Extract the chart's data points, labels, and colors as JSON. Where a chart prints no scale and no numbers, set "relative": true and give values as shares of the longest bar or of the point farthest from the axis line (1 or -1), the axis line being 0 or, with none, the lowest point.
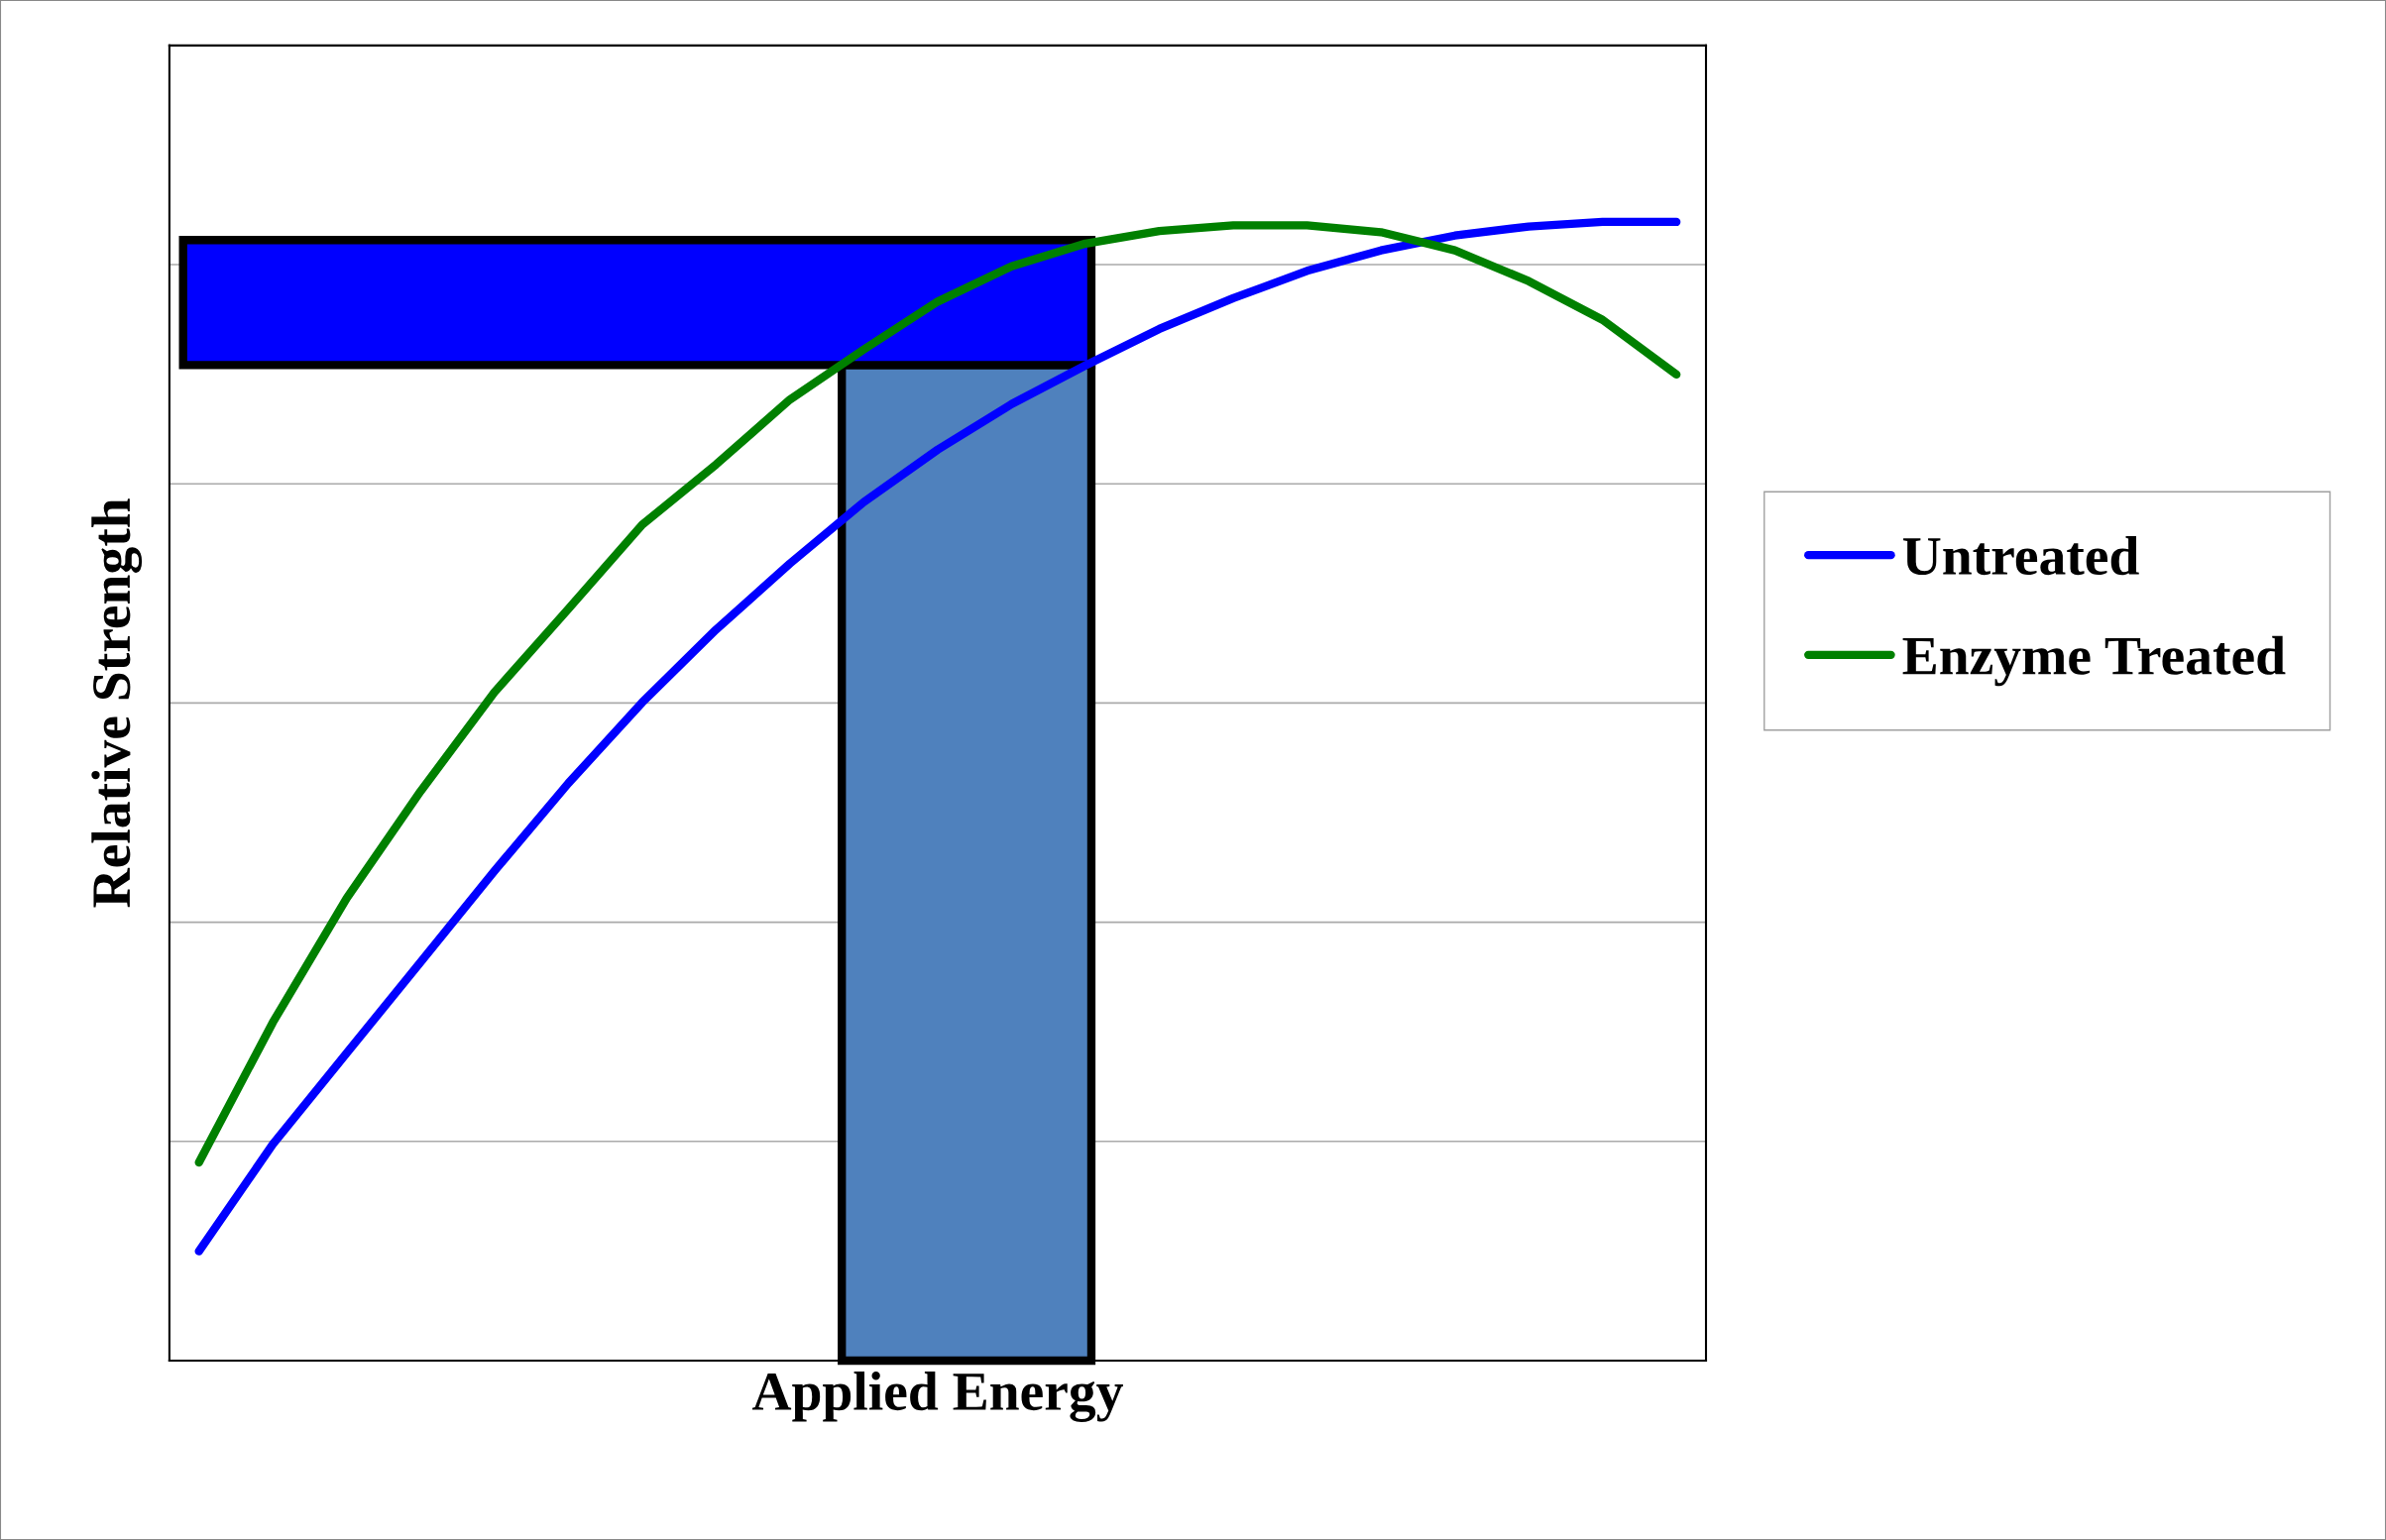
{
  "chart_data": {
    "type": "line",
    "relative": true,
    "xlabel": "Applied Energy",
    "ylabel": "Relative Strength",
    "categories": [
      null,
      null,
      null,
      null,
      null,
      null,
      null,
      null,
      null,
      null,
      null,
      null,
      null,
      null,
      null,
      null,
      null,
      null,
      null,
      null,
      null
    ],
    "series": [
      {
        "name": "Untreated",
        "color": "#0000ff",
        "values": [
          0.096,
          0.19,
          0.27,
          0.35,
          0.43,
          0.507,
          0.578,
          0.642,
          0.7,
          0.754,
          0.8,
          0.84,
          0.874,
          0.906,
          0.933,
          0.957,
          0.975,
          0.988,
          0.996,
          1.0,
          1.0
        ]
      },
      {
        "name": "Enzyme Treated",
        "color": "#008000",
        "values": [
          0.174,
          0.297,
          0.406,
          0.5,
          0.587,
          0.66,
          0.734,
          0.787,
          0.844,
          0.888,
          0.93,
          0.961,
          0.981,
          0.992,
          0.997,
          0.997,
          0.991,
          0.975,
          0.948,
          0.914,
          0.866
        ]
      }
    ],
    "grid": "y",
    "legend": "right",
    "marker": "none",
    "line_style": "solid"
  }
}
